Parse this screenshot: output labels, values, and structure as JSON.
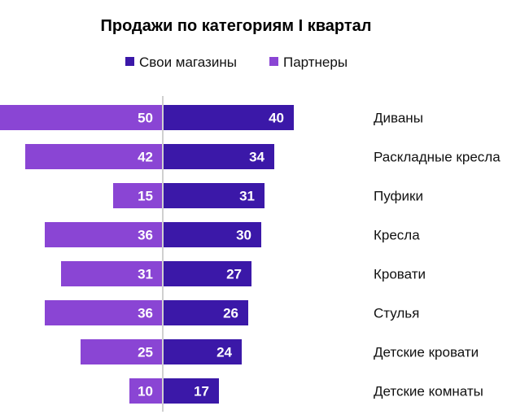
{
  "chart_data": {
    "type": "bar",
    "orientation": "horizontal-diverging",
    "title": "Продажи по категориям I квартал",
    "categories": [
      "Диваны",
      "Раскладные кресла",
      "Пуфики",
      "Кресла",
      "Кровати",
      "Стулья",
      "Детские кровати",
      "Детские комнаты"
    ],
    "series": [
      {
        "name": "Свои магазины",
        "color": "#3b18a8",
        "side": "right",
        "values": [
          40,
          34,
          31,
          30,
          27,
          26,
          24,
          17
        ]
      },
      {
        "name": "Партнеры",
        "color": "#8a45d4",
        "side": "left",
        "values": [
          50,
          42,
          15,
          36,
          31,
          36,
          25,
          10
        ]
      }
    ],
    "data_labels": true,
    "legend_position": "top",
    "grid": false,
    "center_line_color": "#d0d0d0"
  }
}
